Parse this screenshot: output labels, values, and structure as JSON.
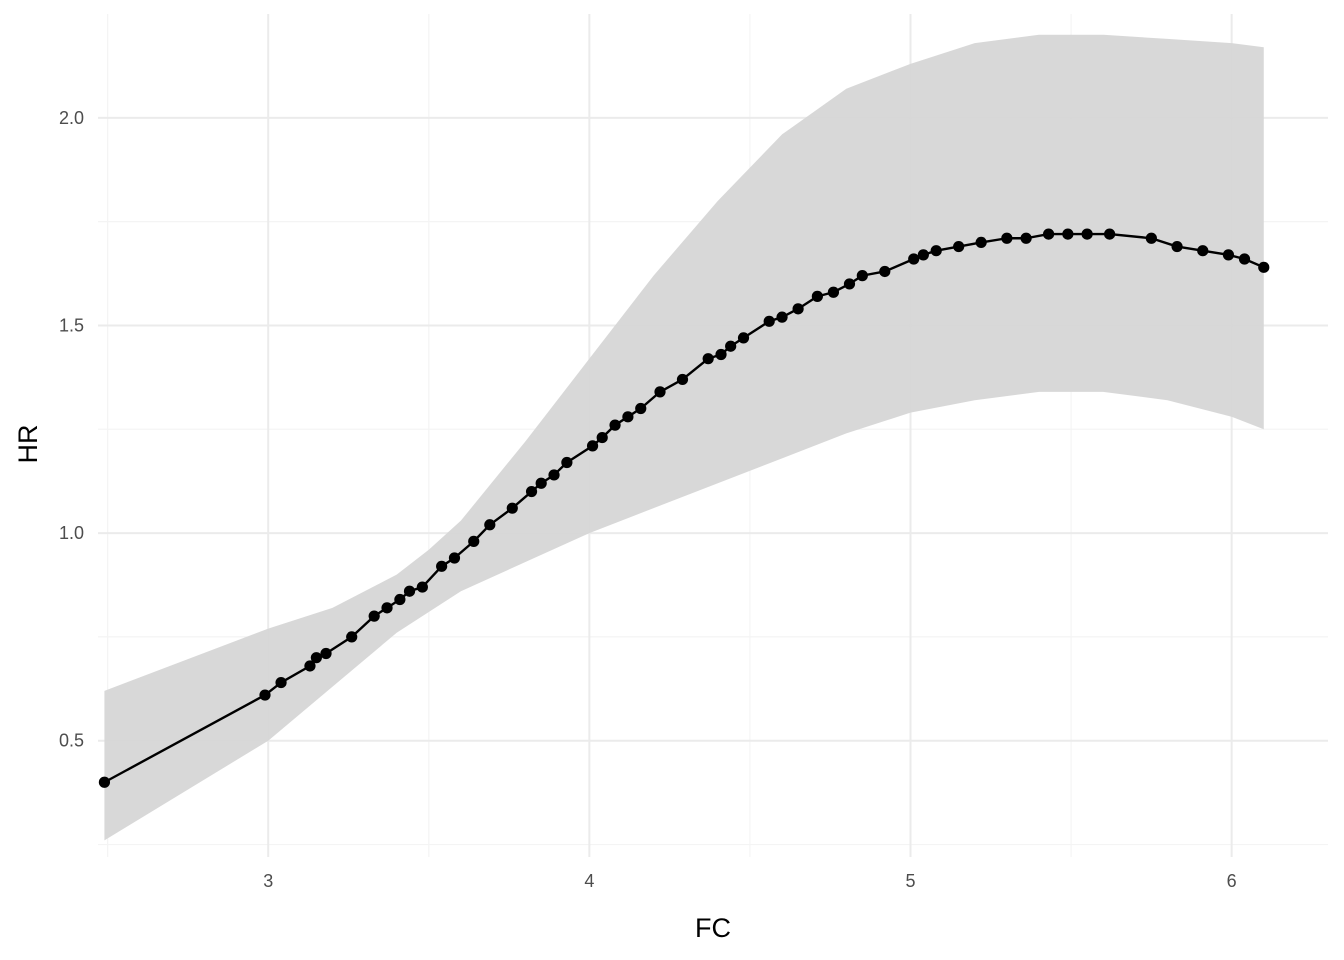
{
  "chart_data": {
    "type": "line",
    "xlabel": "FC",
    "ylabel": "HR",
    "xlim": [
      2.47,
      6.3
    ],
    "ylim": [
      0.22,
      2.25
    ],
    "x_ticks": [
      {
        "value": 3,
        "label": "3"
      },
      {
        "value": 4,
        "label": "4"
      },
      {
        "value": 5,
        "label": "5"
      },
      {
        "value": 6,
        "label": "6"
      }
    ],
    "y_ticks": [
      {
        "value": 0.5,
        "label": "0.5"
      },
      {
        "value": 1.0,
        "label": "1.0"
      },
      {
        "value": 1.5,
        "label": "1.5"
      },
      {
        "value": 2.0,
        "label": "2.0"
      }
    ],
    "x_minor": [
      2.5,
      3.5,
      4.5,
      5.5
    ],
    "y_minor": [
      0.25,
      0.75,
      1.25,
      1.75
    ],
    "grid": true,
    "colors": {
      "line": "#000000",
      "points": "#000000",
      "ribbon": "#d6d6d6",
      "grid_major": "#ebebeb",
      "grid_minor": "#f4f4f4"
    },
    "series": [
      {
        "x": [
          2.49,
          2.99,
          3.04,
          3.13,
          3.15,
          3.18,
          3.26,
          3.33,
          3.37,
          3.41,
          3.44,
          3.48,
          3.54,
          3.58,
          3.64,
          3.69,
          3.76,
          3.82,
          3.85,
          3.89,
          3.93,
          4.01,
          4.04,
          4.08,
          4.12,
          4.16,
          4.22,
          4.29,
          4.37,
          4.41,
          4.44,
          4.48,
          4.56,
          4.6,
          4.65,
          4.71,
          4.76,
          4.81,
          4.85,
          4.92,
          5.01,
          5.04,
          5.08,
          5.15,
          5.22,
          5.3,
          5.36,
          5.43,
          5.49,
          5.55,
          5.62,
          5.75,
          5.83,
          5.91,
          5.99,
          6.04,
          6.1
        ],
        "y": [
          0.4,
          0.61,
          0.64,
          0.68,
          0.7,
          0.71,
          0.75,
          0.8,
          0.82,
          0.84,
          0.86,
          0.87,
          0.92,
          0.94,
          0.98,
          1.02,
          1.06,
          1.1,
          1.12,
          1.14,
          1.17,
          1.21,
          1.23,
          1.26,
          1.28,
          1.3,
          1.34,
          1.37,
          1.42,
          1.43,
          1.45,
          1.47,
          1.51,
          1.52,
          1.54,
          1.57,
          1.58,
          1.6,
          1.62,
          1.63,
          1.66,
          1.67,
          1.68,
          1.69,
          1.7,
          1.71,
          1.71,
          1.72,
          1.72,
          1.72,
          1.72,
          1.71,
          1.69,
          1.68,
          1.67,
          1.66,
          1.64
        ]
      }
    ],
    "confidence_band": {
      "x": [
        2.49,
        3.0,
        3.2,
        3.4,
        3.5,
        3.6,
        3.8,
        4.0,
        4.2,
        4.4,
        4.6,
        4.8,
        5.0,
        5.2,
        5.4,
        5.5,
        5.6,
        5.8,
        6.0,
        6.1
      ],
      "lower": [
        0.26,
        0.5,
        0.63,
        0.76,
        0.81,
        0.86,
        0.93,
        1.0,
        1.06,
        1.12,
        1.18,
        1.24,
        1.29,
        1.32,
        1.34,
        1.34,
        1.34,
        1.32,
        1.28,
        1.25
      ],
      "upper": [
        0.62,
        0.77,
        0.82,
        0.9,
        0.96,
        1.03,
        1.22,
        1.42,
        1.62,
        1.8,
        1.96,
        2.07,
        2.13,
        2.18,
        2.2,
        2.2,
        2.2,
        2.19,
        2.18,
        2.17
      ]
    }
  }
}
